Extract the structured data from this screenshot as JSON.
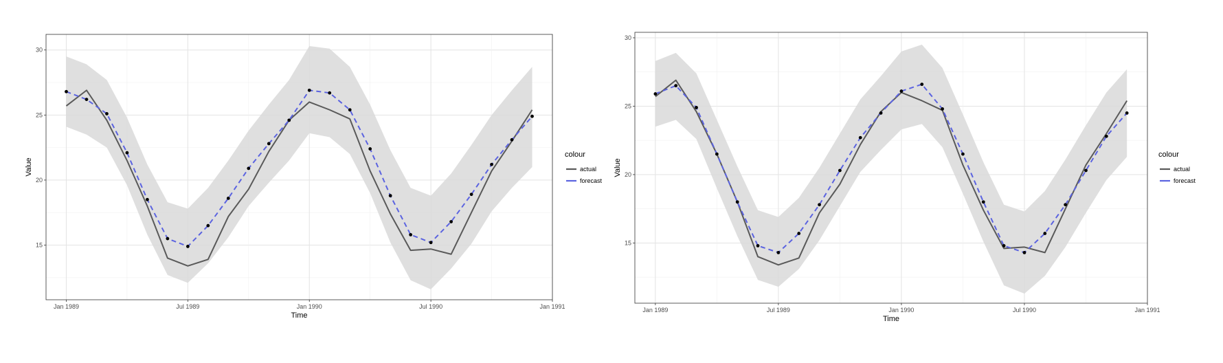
{
  "chart_data": [
    {
      "type": "line",
      "title": "",
      "xlabel": "Time",
      "ylabel": "Value",
      "ylim": [
        10.8,
        31.2
      ],
      "xlim": [
        "1988-12",
        "1991-01"
      ],
      "x_tick_labels": [
        "Jan 1989",
        "Jul 1989",
        "Jan 1990",
        "Jul 1990",
        "Jan 1991"
      ],
      "x_tick_values": [
        "1989-01",
        "1989-07",
        "1990-01",
        "1990-07",
        "1991-01"
      ],
      "y_tick_values": [
        15,
        20,
        25,
        30
      ],
      "grid": true,
      "x": [
        "1989-01",
        "1989-02",
        "1989-03",
        "1989-04",
        "1989-05",
        "1989-06",
        "1989-07",
        "1989-08",
        "1989-09",
        "1989-10",
        "1989-11",
        "1989-12",
        "1990-01",
        "1990-02",
        "1990-03",
        "1990-04",
        "1990-05",
        "1990-06",
        "1990-07",
        "1990-08",
        "1990-09",
        "1990-10",
        "1990-11",
        "1990-12"
      ],
      "legend_title": "colour",
      "legend_position": "right",
      "series": [
        {
          "name": "actual",
          "color": "#595959",
          "style": "solid",
          "values": [
            25.7,
            26.9,
            24.6,
            21.5,
            18.0,
            14.0,
            13.4,
            13.9,
            17.2,
            19.3,
            22.2,
            24.6,
            26.0,
            25.4,
            24.7,
            20.7,
            17.4,
            14.6,
            14.7,
            14.3,
            17.5,
            20.7,
            23.0,
            25.4
          ]
        },
        {
          "name": "forecast",
          "color": "#5b63e0",
          "style": "dashed",
          "values": [
            26.8,
            26.2,
            25.1,
            22.1,
            18.5,
            15.5,
            14.9,
            16.5,
            18.6,
            20.9,
            22.8,
            24.6,
            26.9,
            26.7,
            25.4,
            22.4,
            18.8,
            15.8,
            15.2,
            16.8,
            18.9,
            21.2,
            23.1,
            24.9
          ]
        }
      ],
      "points": [
        26.8,
        26.2,
        25.1,
        22.1,
        18.5,
        15.5,
        14.9,
        16.5,
        18.6,
        20.9,
        22.8,
        24.6,
        26.9,
        26.7,
        25.4,
        22.4,
        18.8,
        15.8,
        15.2,
        16.8,
        18.9,
        21.2,
        23.1,
        24.9
      ],
      "ribbon": {
        "lower": [
          24.1,
          23.5,
          22.5,
          19.6,
          15.8,
          12.7,
          12.1,
          13.6,
          15.6,
          18.0,
          19.8,
          21.5,
          23.6,
          23.3,
          22.0,
          19.0,
          15.2,
          12.3,
          11.6,
          13.2,
          15.1,
          17.6,
          19.4,
          21.0
        ],
        "upper": [
          29.5,
          28.9,
          27.7,
          24.8,
          21.2,
          18.3,
          17.8,
          19.4,
          21.5,
          23.8,
          25.8,
          27.7,
          30.3,
          30.1,
          28.7,
          25.8,
          22.3,
          19.4,
          18.8,
          20.5,
          22.7,
          25.0,
          26.9,
          28.7
        ]
      }
    },
    {
      "type": "line",
      "title": "",
      "xlabel": "Time",
      "ylabel": "Value",
      "ylim": [
        10.6,
        30.4
      ],
      "xlim": [
        "1988-12",
        "1991-01"
      ],
      "x_tick_labels": [
        "Jan 1989",
        "Jul 1989",
        "Jan 1990",
        "Jul 1990",
        "Jan 1991"
      ],
      "x_tick_values": [
        "1989-01",
        "1989-07",
        "1990-01",
        "1990-07",
        "1991-01"
      ],
      "y_tick_values": [
        15,
        20,
        25,
        30
      ],
      "grid": true,
      "x": [
        "1989-01",
        "1989-02",
        "1989-03",
        "1989-04",
        "1989-05",
        "1989-06",
        "1989-07",
        "1989-08",
        "1989-09",
        "1989-10",
        "1989-11",
        "1989-12",
        "1990-01",
        "1990-02",
        "1990-03",
        "1990-04",
        "1990-05",
        "1990-06",
        "1990-07",
        "1990-08",
        "1990-09",
        "1990-10",
        "1990-11",
        "1990-12"
      ],
      "legend_title": "colour",
      "legend_position": "right",
      "series": [
        {
          "name": "actual",
          "color": "#595959",
          "style": "solid",
          "values": [
            25.7,
            26.9,
            24.6,
            21.5,
            18.0,
            14.0,
            13.4,
            13.9,
            17.2,
            19.3,
            22.2,
            24.6,
            26.0,
            25.4,
            24.7,
            20.7,
            17.4,
            14.6,
            14.7,
            14.3,
            17.5,
            20.7,
            23.0,
            25.4
          ]
        },
        {
          "name": "forecast",
          "color": "#5b63e0",
          "style": "dashed",
          "values": [
            25.9,
            26.5,
            24.9,
            21.5,
            18.0,
            14.8,
            14.3,
            15.7,
            17.8,
            20.3,
            22.7,
            24.5,
            26.1,
            26.6,
            24.8,
            21.5,
            18.0,
            14.8,
            14.3,
            15.7,
            17.8,
            20.3,
            22.8,
            24.5
          ]
        }
      ],
      "points": [
        25.9,
        26.5,
        24.9,
        21.5,
        18.0,
        14.8,
        14.3,
        15.7,
        17.8,
        20.3,
        22.7,
        24.5,
        26.1,
        26.6,
        24.8,
        21.5,
        18.0,
        14.8,
        14.3,
        15.7,
        17.8,
        20.3,
        22.8,
        24.5
      ],
      "ribbon": {
        "lower": [
          23.5,
          24.0,
          22.6,
          19.0,
          15.5,
          12.3,
          11.8,
          13.1,
          15.2,
          17.7,
          20.2,
          21.8,
          23.3,
          23.7,
          22.0,
          18.6,
          15.1,
          11.9,
          11.3,
          12.6,
          14.7,
          17.2,
          19.6,
          21.3
        ],
        "upper": [
          28.3,
          28.9,
          27.4,
          24.0,
          20.6,
          17.4,
          16.9,
          18.3,
          20.5,
          23.0,
          25.5,
          27.2,
          29.0,
          29.5,
          27.8,
          24.4,
          20.9,
          17.8,
          17.3,
          18.8,
          21.1,
          23.6,
          26.0,
          27.7
        ]
      }
    }
  ]
}
